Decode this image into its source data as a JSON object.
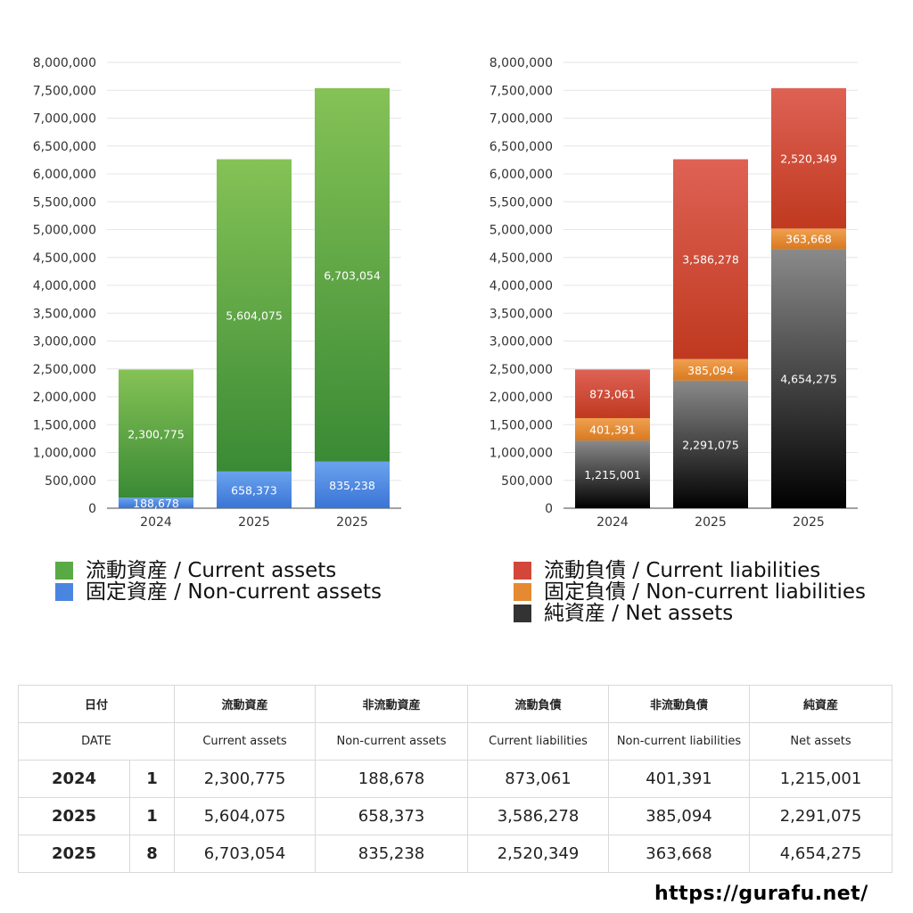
{
  "chart_data": [
    {
      "type": "bar",
      "stacked": true,
      "categories": [
        "2024",
        "2025",
        "2025"
      ],
      "ylim": [
        0,
        8000000
      ],
      "yticks": [
        "0",
        "500,000",
        "1,000,000",
        "1,500,000",
        "2,000,000",
        "2,500,000",
        "3,000,000",
        "3,500,000",
        "4,000,000",
        "4,500,000",
        "5,000,000",
        "5,500,000",
        "6,000,000",
        "6,500,000",
        "7,000,000",
        "7,500,000",
        "8,000,000"
      ],
      "grid": true,
      "series": [
        {
          "name": "固定資産 / Non-current assets",
          "values": [
            188678,
            658373,
            835238
          ],
          "labels": [
            "188,678",
            "658,373",
            "835,238"
          ],
          "color_top": "#6aa3ee",
          "color_bottom": "#3a74d6"
        },
        {
          "name": "流動資産 / Current assets",
          "values": [
            2300775,
            5604075,
            6703054
          ],
          "labels": [
            "2,300,775",
            "5,604,075",
            "6,703,054"
          ],
          "color_top": "#85c256",
          "color_bottom": "#3a8a35"
        }
      ],
      "legend": [
        "流動資産 / Current assets",
        "固定資産 / Non-current assets"
      ],
      "legend_colors": [
        "#58ab44",
        "#4a86e0"
      ]
    },
    {
      "type": "bar",
      "stacked": true,
      "categories": [
        "2024",
        "2025",
        "2025"
      ],
      "ylim": [
        0,
        8000000
      ],
      "yticks": [
        "0",
        "500,000",
        "1,000,000",
        "1,500,000",
        "2,000,000",
        "2,500,000",
        "3,000,000",
        "3,500,000",
        "4,000,000",
        "4,500,000",
        "5,000,000",
        "5,500,000",
        "6,000,000",
        "6,500,000",
        "7,000,000",
        "7,500,000",
        "8,000,000"
      ],
      "grid": true,
      "series": [
        {
          "name": "純資産 / Net assets",
          "values": [
            1215001,
            2291075,
            4654275
          ],
          "labels": [
            "1,215,001",
            "2,291,075",
            "4,654,275"
          ],
          "color_top": "#8a8a8a",
          "color_bottom": "#000000"
        },
        {
          "name": "固定負債 / Non-current liabilities",
          "values": [
            401391,
            385094,
            363668
          ],
          "labels": [
            "401,391",
            "385,094",
            "363,668"
          ],
          "color_top": "#f0a050",
          "color_bottom": "#d97a20"
        },
        {
          "name": "流動負債 / Current liabilities",
          "values": [
            873061,
            3586278,
            2520349
          ],
          "labels": [
            "873,061",
            "3,586,278",
            "2,520,349"
          ],
          "color_top": "#de6255",
          "color_bottom": "#c0391f"
        }
      ],
      "legend": [
        "流動負債 / Current liabilities",
        "固定負債 / Non-current liabilities",
        "純資産 / Net assets"
      ],
      "legend_colors": [
        "#d2473a",
        "#e58a32",
        "#333333"
      ]
    }
  ],
  "table": {
    "header_ja": [
      "日付",
      "流動資産",
      "非流動資産",
      "流動負債",
      "非流動負債",
      "純資産"
    ],
    "header_en": [
      "DATE",
      "Current assets",
      "Non-current assets",
      "Current liabilities",
      "Non-current liabilities",
      "Net assets"
    ],
    "rows": [
      {
        "year": "2024",
        "month": "1",
        "values": [
          "2,300,775",
          "188,678",
          "873,061",
          "401,391",
          "1,215,001"
        ]
      },
      {
        "year": "2025",
        "month": "1",
        "values": [
          "5,604,075",
          "658,373",
          "3,586,278",
          "385,094",
          "2,291,075"
        ]
      },
      {
        "year": "2025",
        "month": "8",
        "values": [
          "6,703,054",
          "835,238",
          "2,520,349",
          "363,668",
          "4,654,275"
        ]
      }
    ]
  },
  "footer": {
    "url": "https://gurafu.net/"
  }
}
